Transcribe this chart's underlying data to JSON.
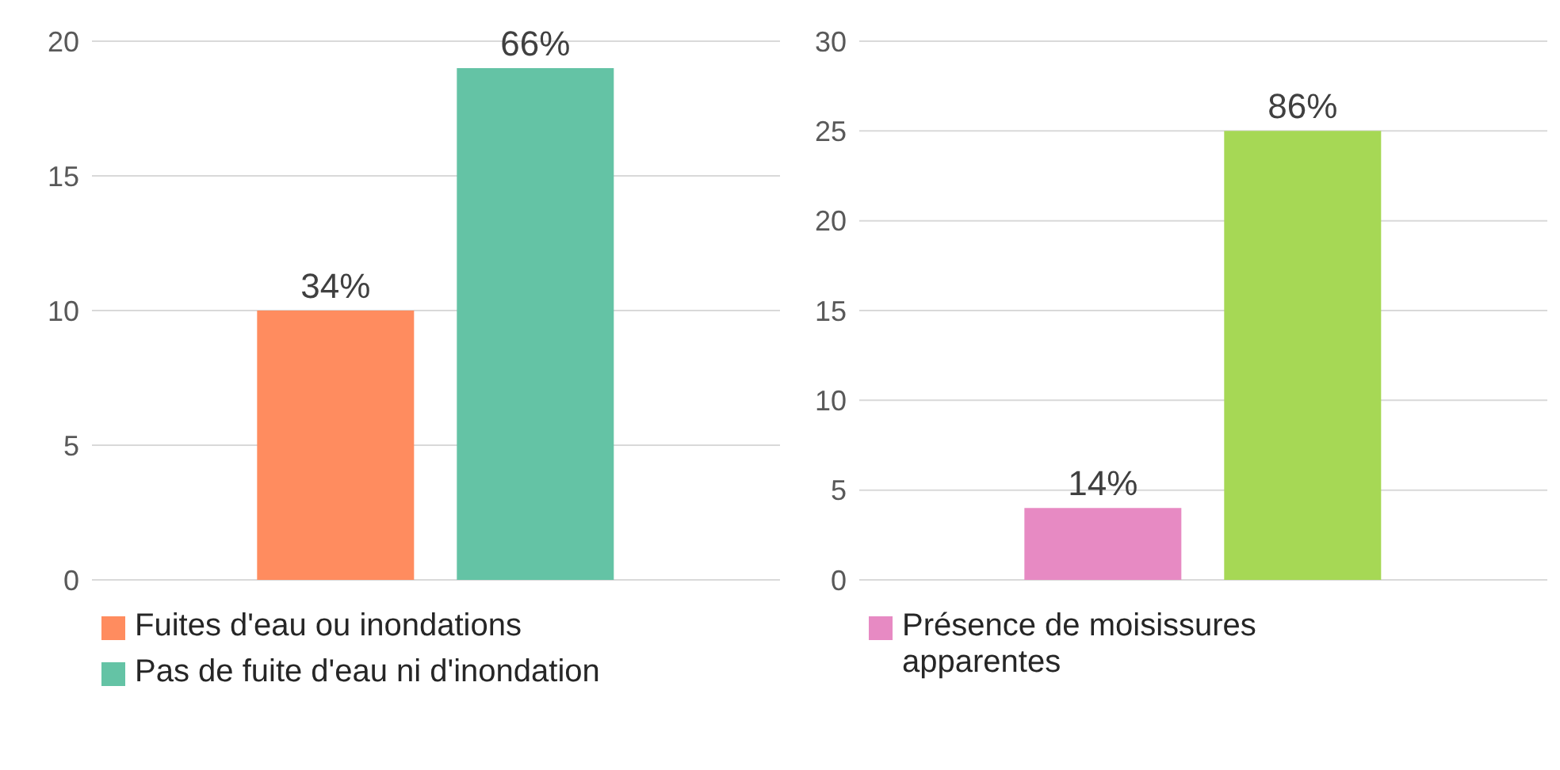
{
  "chart_data": [
    {
      "type": "bar",
      "categories": [
        null
      ],
      "series": [
        {
          "name": "Fuites d'eau ou inondations",
          "color": "#ff8c5f",
          "values": [
            10
          ]
        },
        {
          "name": "Pas de fuite d'eau ni d'inondation",
          "color": "#64c3a5",
          "values": [
            19
          ]
        }
      ],
      "annotations": [
        "34%",
        "66%"
      ],
      "ylim": [
        0,
        20
      ],
      "yticks": [
        0,
        5,
        10,
        15,
        20
      ],
      "grid": "y",
      "legend": "bottom"
    },
    {
      "type": "bar",
      "categories": [
        null
      ],
      "series": [
        {
          "name": "Présence de moisissures apparentes",
          "color": "#e78ac3",
          "values": [
            4
          ]
        },
        {
          "color": "#a6d855",
          "values": [
            25
          ]
        }
      ],
      "annotations": [
        "14%",
        "86%"
      ],
      "ylim": [
        0,
        30
      ],
      "yticks": [
        0,
        5,
        10,
        15,
        20,
        25,
        30
      ],
      "grid": "y",
      "legend": "bottom"
    }
  ]
}
